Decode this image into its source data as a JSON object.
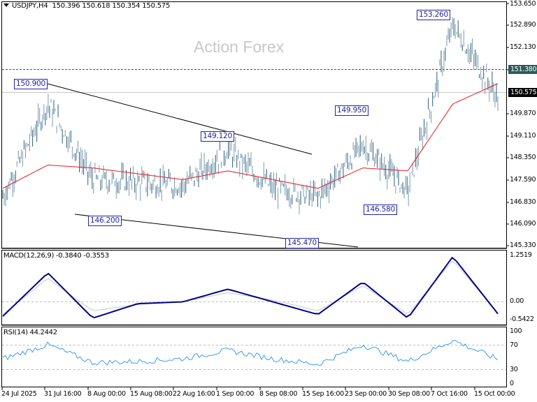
{
  "header": {
    "symbol": "USDJPY,H4",
    "ohlc": "150.396 150.618 150.354 150.575",
    "watermark": "Action Forex"
  },
  "price_axis": {
    "labels": [
      "153.650",
      "152.890",
      "152.130",
      "151.380",
      "150.575",
      "149.870",
      "149.110",
      "148.350",
      "147.590",
      "146.830",
      "146.090",
      "145.330"
    ],
    "current_price": "150.575",
    "level_line": "151.380"
  },
  "annotations": [
    "150.900",
    "149.120",
    "146.200",
    "145.470",
    "149.950",
    "146.580",
    "153.260"
  ],
  "macd": {
    "label": "MACD(12,26,9) -0.3840 -0.3553",
    "axis": [
      "1.2519",
      "0.00",
      "-0.5422"
    ]
  },
  "rsi": {
    "label": "RSI(14) 44.2442",
    "axis": [
      "100",
      "70",
      "30",
      "0"
    ]
  },
  "time_axis": [
    "24 Jul 2025",
    "31 Jul 16:00",
    "8 Aug 00:00",
    "15 Aug 08:00",
    "22 Aug 16:00",
    "1 Sep 00:00",
    "8 Sep 08:00",
    "15 Sep 16:00",
    "23 Sep 00:00",
    "30 Sep 08:00",
    "7 Oct 16:00",
    "15 Oct 00:00"
  ],
  "chart_data": [
    {
      "type": "line",
      "title": "USDJPY,H4 150.396 150.618 150.354 150.575",
      "xlabel": "",
      "ylabel": "",
      "ylim": [
        145.33,
        153.65
      ],
      "x": [
        "24 Jul 2025",
        "31 Jul 16:00",
        "8 Aug 00:00",
        "15 Aug 08:00",
        "22 Aug 16:00",
        "1 Sep 00:00",
        "8 Sep 08:00",
        "15 Sep 16:00",
        "23 Sep 00:00",
        "30 Sep 08:00",
        "7 Oct 16:00",
        "15 Oct 00:00"
      ],
      "series": [
        {
          "name": "USDJPY close (approx)",
          "values": [
            147.0,
            150.2,
            147.6,
            147.5,
            147.4,
            148.6,
            147.3,
            147.0,
            148.8,
            147.2,
            152.9,
            150.4
          ]
        },
        {
          "name": "MA (red)",
          "values": [
            147.3,
            148.1,
            148.0,
            147.8,
            147.6,
            147.9,
            147.6,
            147.3,
            148.0,
            147.9,
            150.2,
            150.9
          ]
        }
      ],
      "annotations": [
        {
          "label": "150.900",
          "x": "31 Jul 16:00"
        },
        {
          "label": "149.120",
          "x": "1 Sep 00:00"
        },
        {
          "label": "146.200",
          "x": "15 Aug 08:00"
        },
        {
          "label": "145.470",
          "x": "15 Sep 16:00"
        },
        {
          "label": "149.950",
          "x": "23 Sep 00:00"
        },
        {
          "label": "146.580",
          "x": "30 Sep 08:00"
        },
        {
          "label": "153.260",
          "x": "7 Oct 16:00"
        }
      ],
      "horizontal_lines": [
        151.38,
        150.575
      ],
      "grid": false
    },
    {
      "type": "line",
      "title": "MACD(12,26,9) -0.3840 -0.3553",
      "ylim": [
        -0.5422,
        1.2519
      ],
      "x": [
        "24 Jul 2025",
        "31 Jul 16:00",
        "8 Aug 00:00",
        "15 Aug 08:00",
        "22 Aug 16:00",
        "1 Sep 00:00",
        "8 Sep 08:00",
        "15 Sep 16:00",
        "23 Sep 00:00",
        "30 Sep 08:00",
        "7 Oct 16:00",
        "15 Oct 00:00"
      ],
      "series": [
        {
          "name": "MACD",
          "values": [
            -0.45,
            0.75,
            -0.5,
            -0.1,
            -0.05,
            0.3,
            -0.05,
            -0.4,
            0.5,
            -0.5,
            1.2,
            -0.38
          ]
        },
        {
          "name": "Signal",
          "values": [
            -0.4,
            0.6,
            -0.3,
            -0.12,
            -0.05,
            0.2,
            0.0,
            -0.3,
            0.4,
            -0.4,
            1.1,
            -0.36
          ]
        }
      ]
    },
    {
      "type": "line",
      "title": "RSI(14) 44.2442",
      "ylim": [
        0,
        100
      ],
      "x": [
        "24 Jul 2025",
        "31 Jul 16:00",
        "8 Aug 00:00",
        "15 Aug 08:00",
        "22 Aug 16:00",
        "1 Sep 00:00",
        "8 Sep 08:00",
        "15 Sep 16:00",
        "23 Sep 00:00",
        "30 Sep 08:00",
        "7 Oct 16:00",
        "15 Oct 00:00"
      ],
      "series": [
        {
          "name": "RSI(14)",
          "values": [
            45,
            70,
            38,
            40,
            45,
            60,
            45,
            35,
            70,
            40,
            78,
            44
          ]
        }
      ],
      "reference_lines": [
        70,
        30
      ]
    }
  ]
}
